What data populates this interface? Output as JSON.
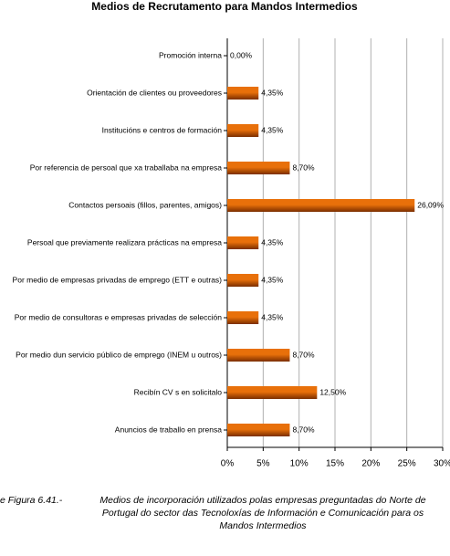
{
  "chart_data": {
    "type": "bar",
    "orientation": "horizontal",
    "title": "Medios de Recrutamento para Mandos Intermedios",
    "categories": [
      "Promoción interna",
      "Orientación de clientes ou proveedores",
      "Institucións e centros de formación",
      "Por referencia de persoal que xa traballaba na empresa",
      "Contactos persoais (fillos, parentes, amigos)",
      "Persoal que previamente realizara prácticas na empresa",
      "Por medio de empresas privadas de emprego (ETT e outras)",
      "Por medio de consultoras e empresas privadas de selección",
      "Por medio dun servicio público de emprego (INEM u outros)",
      "Recibín CV s en solicitalo",
      "Anuncios de traballo en prensa"
    ],
    "values": [
      0,
      4.35,
      4.35,
      8.7,
      26.09,
      4.35,
      4.35,
      4.35,
      8.7,
      12.5,
      8.7
    ],
    "value_labels": [
      "0,00%",
      "4,35%",
      "4,35%",
      "8,70%",
      "26,09%",
      "4,35%",
      "4,35%",
      "4,35%",
      "8,70%",
      "12,50%",
      "8,70%"
    ],
    "color": "#e8700a",
    "xlim": [
      0,
      30
    ],
    "xticks": [
      {
        "value": 0,
        "label": "0%"
      },
      {
        "value": 5,
        "label": "5%"
      },
      {
        "value": 10,
        "label": "10%"
      },
      {
        "value": 15,
        "label": "15%"
      },
      {
        "value": 20,
        "label": "20%"
      },
      {
        "value": 25,
        "label": "25%"
      },
      {
        "value": 30,
        "label": "30%"
      }
    ],
    "grid": true
  },
  "caption": {
    "label": "e Figura 6.41.-",
    "lines": [
      "Medios de incorporación utilizados polas empresas preguntadas do Norte de",
      "Portugal do sector das Tecnoloxías de Información e Comunicación para os",
      "Mandos Intermedios"
    ]
  }
}
